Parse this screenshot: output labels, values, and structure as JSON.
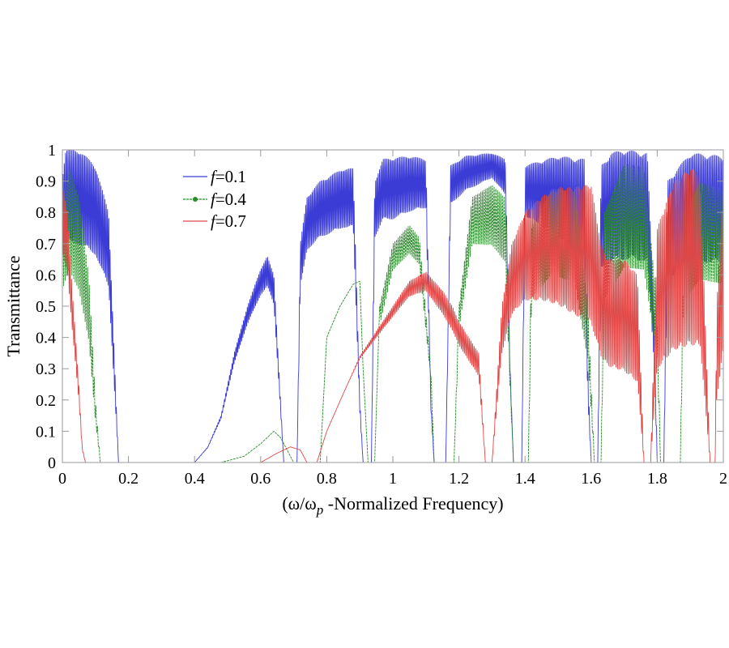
{
  "chart_data": {
    "type": "line",
    "title": "",
    "xlabel": {
      "prefix": "(ω/ω",
      "sub": "p",
      "suffix": " -Normalized Frequency)"
    },
    "ylabel": "Transmittance",
    "xlim": [
      0,
      2
    ],
    "ylim": [
      0,
      1
    ],
    "xticks": [
      0,
      0.2,
      0.4,
      0.6,
      0.8,
      1,
      1.2,
      1.4,
      1.6,
      1.8,
      2
    ],
    "xtick_labels": [
      "0",
      "0.2",
      "0.4",
      "0.6",
      "0.8",
      "1",
      "1.2",
      "1.4",
      "1.6",
      "1.8",
      "2"
    ],
    "yticks": [
      0,
      0.1,
      0.2,
      0.3,
      0.4,
      0.5,
      0.6,
      0.7,
      0.8,
      0.9,
      1
    ],
    "ytick_labels": [
      "0",
      "0.1",
      "0.2",
      "0.3",
      "0.4",
      "0.5",
      "0.6",
      "0.7",
      "0.8",
      "0.9",
      "1"
    ],
    "legend_position": "top-left",
    "series": [
      {
        "name": "f=0.1",
        "legend_var": "f",
        "legend_value": "=0.1",
        "color": "#3b3bd6",
        "marker": false,
        "envelope": [
          [
            0,
            0.92
          ],
          [
            0.01,
            1.0
          ],
          [
            0.05,
            1.0
          ],
          [
            0.1,
            0.95
          ],
          [
            0.14,
            0.8
          ],
          [
            0.155,
            0.4
          ],
          [
            0.17,
            0.0
          ],
          [
            0.4,
            0.0
          ],
          [
            0.44,
            0.05
          ],
          [
            0.48,
            0.15
          ],
          [
            0.52,
            0.35
          ],
          [
            0.56,
            0.5
          ],
          [
            0.6,
            0.62
          ],
          [
            0.62,
            0.66
          ],
          [
            0.64,
            0.6
          ],
          [
            0.655,
            0.3
          ],
          [
            0.67,
            0.0
          ],
          [
            0.71,
            0.0
          ],
          [
            0.72,
            0.7
          ],
          [
            0.74,
            0.85
          ],
          [
            0.78,
            0.9
          ],
          [
            0.85,
            0.94
          ],
          [
            0.88,
            0.94
          ],
          [
            0.9,
            0.2
          ],
          [
            0.91,
            0.0
          ],
          [
            0.935,
            0.0
          ],
          [
            0.945,
            0.9
          ],
          [
            0.97,
            0.97
          ],
          [
            1.05,
            0.98
          ],
          [
            1.1,
            0.97
          ],
          [
            1.115,
            0.2
          ],
          [
            1.125,
            0.0
          ],
          [
            1.16,
            0.0
          ],
          [
            1.175,
            0.95
          ],
          [
            1.22,
            0.98
          ],
          [
            1.3,
            0.99
          ],
          [
            1.34,
            0.97
          ],
          [
            1.355,
            0.3
          ],
          [
            1.365,
            0.0
          ],
          [
            1.39,
            0.0
          ],
          [
            1.4,
            0.95
          ],
          [
            1.5,
            0.98
          ],
          [
            1.58,
            0.97
          ],
          [
            1.59,
            0.3
          ],
          [
            1.6,
            0.0
          ],
          [
            1.62,
            0.0
          ],
          [
            1.63,
            0.95
          ],
          [
            1.66,
            0.99
          ],
          [
            1.7,
            1.0
          ],
          [
            1.77,
            0.99
          ],
          [
            1.79,
            0.5
          ],
          [
            1.8,
            0.0
          ],
          [
            1.82,
            0.0
          ],
          [
            1.83,
            0.9
          ],
          [
            1.9,
            0.99
          ],
          [
            2.0,
            0.98
          ]
        ],
        "ripple": [
          [
            0,
            0.3
          ],
          [
            0.17,
            0.3
          ],
          [
            0.17,
            0
          ],
          [
            0.4,
            0
          ],
          [
            0.4,
            0.03
          ],
          [
            0.72,
            0.2
          ],
          [
            0.94,
            0.2
          ],
          [
            1.0,
            0.2
          ],
          [
            1.3,
            0.08
          ],
          [
            1.6,
            0.35
          ],
          [
            2.0,
            0.35
          ]
        ],
        "ripple_cycles_per_unit": 260
      },
      {
        "name": "f=0.4",
        "legend_var": "f",
        "legend_value": "=0.4",
        "color": "#2a8c2a",
        "marker": true,
        "envelope": [
          [
            0,
            0.85
          ],
          [
            0.02,
            0.95
          ],
          [
            0.05,
            0.85
          ],
          [
            0.08,
            0.6
          ],
          [
            0.1,
            0.2
          ],
          [
            0.115,
            0.0
          ],
          [
            0.48,
            0.0
          ],
          [
            0.55,
            0.02
          ],
          [
            0.6,
            0.06
          ],
          [
            0.64,
            0.1
          ],
          [
            0.66,
            0.08
          ],
          [
            0.7,
            0.0
          ],
          [
            0.78,
            0.0
          ],
          [
            0.8,
            0.4
          ],
          [
            0.84,
            0.5
          ],
          [
            0.88,
            0.57
          ],
          [
            0.9,
            0.58
          ],
          [
            0.91,
            0.3
          ],
          [
            0.925,
            0.0
          ],
          [
            0.945,
            0.0
          ],
          [
            0.96,
            0.5
          ],
          [
            1.0,
            0.7
          ],
          [
            1.05,
            0.76
          ],
          [
            1.08,
            0.72
          ],
          [
            1.115,
            0.3
          ],
          [
            1.125,
            0.0
          ],
          [
            1.185,
            0.0
          ],
          [
            1.2,
            0.5
          ],
          [
            1.24,
            0.85
          ],
          [
            1.3,
            0.89
          ],
          [
            1.34,
            0.85
          ],
          [
            1.355,
            0.3
          ],
          [
            1.365,
            0.0
          ],
          [
            1.41,
            0.0
          ],
          [
            1.42,
            0.75
          ],
          [
            1.48,
            0.88
          ],
          [
            1.55,
            0.87
          ],
          [
            1.59,
            0.5
          ],
          [
            1.61,
            0.0
          ],
          [
            1.63,
            0.0
          ],
          [
            1.64,
            0.8
          ],
          [
            1.7,
            0.96
          ],
          [
            1.76,
            0.95
          ],
          [
            1.8,
            0.5
          ],
          [
            1.81,
            0.0
          ],
          [
            1.87,
            0.0
          ],
          [
            1.88,
            0.8
          ],
          [
            1.93,
            0.9
          ],
          [
            2.0,
            0.88
          ]
        ],
        "ripple": [
          [
            0,
            0.35
          ],
          [
            0.115,
            0.35
          ],
          [
            0.115,
            0
          ],
          [
            0.96,
            0
          ],
          [
            0.96,
            0.12
          ],
          [
            1.12,
            0.12
          ],
          [
            1.2,
            0.15
          ],
          [
            1.42,
            0.3
          ],
          [
            1.6,
            0.35
          ],
          [
            2.0,
            0.35
          ]
        ],
        "ripple_cycles_per_unit": 200
      },
      {
        "name": "f=0.7",
        "legend_var": "f",
        "legend_value": "=0.7",
        "color": "#e04848",
        "marker": false,
        "envelope": [
          [
            0,
            0.9
          ],
          [
            0.015,
            0.8
          ],
          [
            0.03,
            0.55
          ],
          [
            0.05,
            0.25
          ],
          [
            0.06,
            0.05
          ],
          [
            0.07,
            0.0
          ],
          [
            0.6,
            0.0
          ],
          [
            0.65,
            0.03
          ],
          [
            0.69,
            0.05
          ],
          [
            0.72,
            0.04
          ],
          [
            0.74,
            0.0
          ],
          [
            0.77,
            0.0
          ],
          [
            0.8,
            0.1
          ],
          [
            0.85,
            0.22
          ],
          [
            0.9,
            0.34
          ],
          [
            0.95,
            0.42
          ],
          [
            1.0,
            0.5
          ],
          [
            1.05,
            0.58
          ],
          [
            1.1,
            0.61
          ],
          [
            1.15,
            0.55
          ],
          [
            1.18,
            0.5
          ],
          [
            1.2,
            0.45
          ],
          [
            1.23,
            0.4
          ],
          [
            1.26,
            0.35
          ],
          [
            1.28,
            0.0
          ],
          [
            1.3,
            0.0
          ],
          [
            1.33,
            0.5
          ],
          [
            1.36,
            0.7
          ],
          [
            1.4,
            0.8
          ],
          [
            1.45,
            0.85
          ],
          [
            1.5,
            0.88
          ],
          [
            1.55,
            0.88
          ],
          [
            1.6,
            0.89
          ],
          [
            1.63,
            0.7
          ],
          [
            1.65,
            0.65
          ],
          [
            1.7,
            0.65
          ],
          [
            1.74,
            0.6
          ],
          [
            1.76,
            0.0
          ],
          [
            1.78,
            0.0
          ],
          [
            1.8,
            0.75
          ],
          [
            1.85,
            0.9
          ],
          [
            1.9,
            0.94
          ],
          [
            1.93,
            0.93
          ],
          [
            1.96,
            0.0
          ],
          [
            1.975,
            0.0
          ],
          [
            1.98,
            0.5
          ],
          [
            2.0,
            0.9
          ]
        ],
        "ripple": [
          [
            0,
            0.25
          ],
          [
            0.07,
            0.2
          ],
          [
            0.07,
            0
          ],
          [
            0.85,
            0
          ],
          [
            0.95,
            0.05
          ],
          [
            1.1,
            0.1
          ],
          [
            1.25,
            0.2
          ],
          [
            1.33,
            0.3
          ],
          [
            1.6,
            0.5
          ],
          [
            1.8,
            0.6
          ],
          [
            2.0,
            0.6
          ]
        ],
        "ripple_cycles_per_unit": 220
      }
    ]
  }
}
